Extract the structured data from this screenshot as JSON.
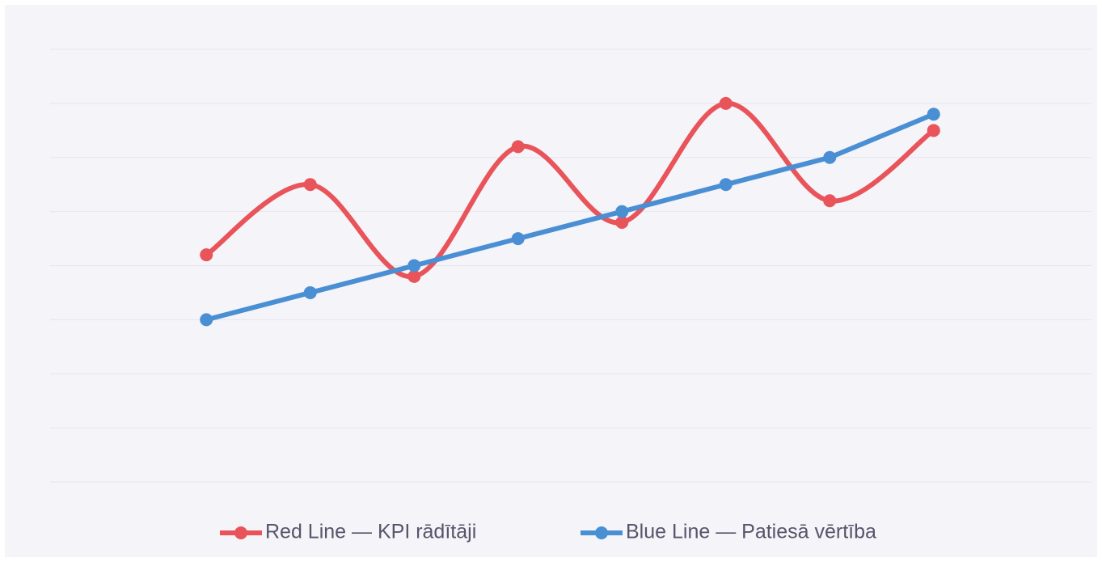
{
  "chart_data": {
    "type": "line",
    "categories": [
      null,
      null,
      null,
      null,
      null,
      null,
      null,
      null
    ],
    "series": [
      {
        "name": "Red Line — KPI rādītāji",
        "color": "#e8545a",
        "smooth": true,
        "values": [
          4.2,
          5.5,
          3.8,
          6.2,
          4.8,
          7.0,
          5.2,
          6.5
        ]
      },
      {
        "name": "Blue Line — Patiesā vērtība",
        "color": "#4a8fd4",
        "smooth": false,
        "values": [
          3.0,
          3.5,
          4.0,
          4.5,
          5.0,
          5.5,
          6.0,
          6.8
        ]
      }
    ],
    "ylim": [
      0,
      8
    ],
    "yticks": [
      0,
      1,
      2,
      3,
      4,
      5,
      6,
      7,
      8
    ],
    "grid": true,
    "legend": "bottom"
  }
}
